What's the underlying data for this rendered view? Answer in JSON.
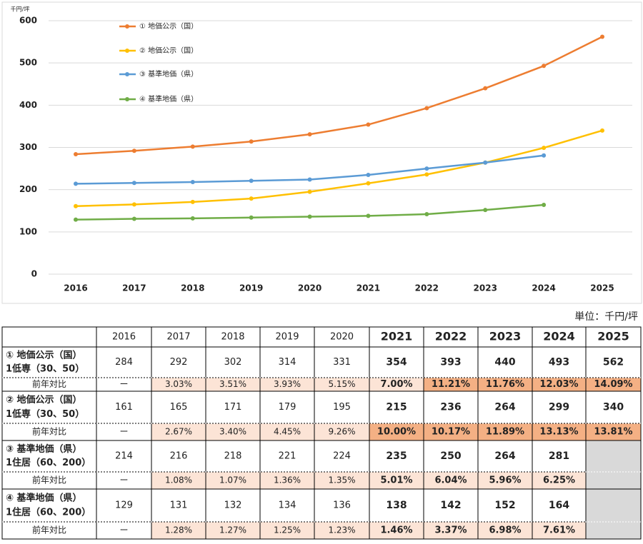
{
  "chart_data": {
    "type": "line",
    "y_unit": "千円/坪",
    "categories": [
      "2016",
      "2017",
      "2018",
      "2019",
      "2020",
      "2021",
      "2022",
      "2023",
      "2024",
      "2025"
    ],
    "ylim": [
      0,
      600
    ],
    "yticks": [
      0,
      100,
      200,
      300,
      400,
      500,
      600
    ],
    "grid": true,
    "series": [
      {
        "name": "① 地価公示（国）",
        "color": "#ed7d31",
        "values": [
          284,
          292,
          302,
          314,
          331,
          354,
          393,
          440,
          493,
          562
        ]
      },
      {
        "name": "② 地価公示（国）",
        "color": "#ffc000",
        "values": [
          161,
          165,
          171,
          179,
          195,
          215,
          236,
          264,
          299,
          340
        ]
      },
      {
        "name": "③ 基準地価（県）",
        "color": "#5b9bd5",
        "values": [
          214,
          216,
          218,
          221,
          224,
          235,
          250,
          264,
          281,
          null
        ]
      },
      {
        "name": "④ 基準地価（県）",
        "color": "#70ad47",
        "values": [
          129,
          131,
          132,
          134,
          136,
          138,
          142,
          152,
          164,
          null
        ]
      }
    ]
  },
  "table": {
    "unit": "単位：千円/坪",
    "highlight_from": 5,
    "highlight_color": "#e0201b",
    "empty_fill": "#d9d9d9",
    "rows": [
      {
        "label": [
          "① 地価公示（国）",
          "1低専（30、50）"
        ],
        "change": {
          "label": "前年対比",
          "values": [
            "ー",
            "3.03%",
            "3.51%",
            "3.93%",
            "5.15%",
            "7.00%",
            "11.21%",
            "11.76%",
            "12.03%",
            "14.09%"
          ],
          "fills": [
            null,
            "#fce4d6",
            "#fce4d6",
            "#fce4d6",
            "#fce4d6",
            "#fce4d6",
            "#f4b084",
            "#f4b084",
            "#f4b084",
            "#f4b084"
          ]
        }
      },
      {
        "label": [
          "② 地価公示（国）",
          "1低専（30、50）"
        ],
        "change": {
          "label": "前年対比",
          "values": [
            "ー",
            "2.67%",
            "3.40%",
            "4.45%",
            "9.26%",
            "10.00%",
            "10.17%",
            "11.89%",
            "13.13%",
            "13.81%"
          ],
          "fills": [
            null,
            "#fce4d6",
            "#fce4d6",
            "#fce4d6",
            "#fce4d6",
            "#f4b084",
            "#f4b084",
            "#f4b084",
            "#f4b084",
            "#f4b084"
          ]
        }
      },
      {
        "label": [
          "③ 基準地価（県）",
          "1住居（60、200）"
        ],
        "change": {
          "label": "前年対比",
          "values": [
            "ー",
            "1.08%",
            "1.07%",
            "1.36%",
            "1.35%",
            "5.01%",
            "6.04%",
            "5.96%",
            "6.25%",
            null
          ],
          "fills": [
            null,
            "#fce4d6",
            "#fce4d6",
            "#fce4d6",
            "#fce4d6",
            "#fce4d6",
            "#fce4d6",
            "#fce4d6",
            "#fce4d6",
            null
          ]
        }
      },
      {
        "label": [
          "④ 基準地価（県）",
          "1住居（60、200）"
        ],
        "change": {
          "label": "前年対比",
          "values": [
            "ー",
            "1.28%",
            "1.27%",
            "1.25%",
            "1.23%",
            "1.46%",
            "3.37%",
            "6.98%",
            "7.61%",
            null
          ],
          "fills": [
            null,
            "#fce4d6",
            "#fce4d6",
            "#fce4d6",
            "#fce4d6",
            "#fce4d6",
            "#fce4d6",
            "#fce4d6",
            "#fce4d6",
            null
          ]
        }
      }
    ]
  }
}
